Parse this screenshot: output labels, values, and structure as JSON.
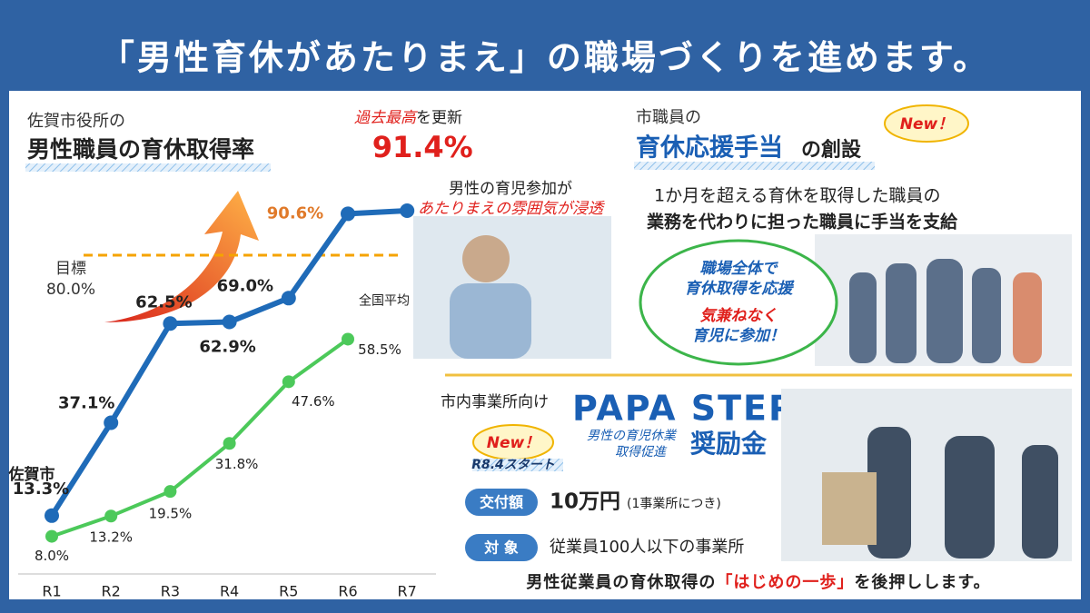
{
  "header": {
    "title": "「男性育休があたりまえ」の職場づくりを進めます。"
  },
  "chart_data": {
    "type": "line",
    "subtitle": "佐賀市役所の",
    "title": "男性職員の育休取得率",
    "annotation": {
      "emphasis": "過去最高",
      "rest": "を更新"
    },
    "categories": [
      "R1",
      "R2",
      "R3",
      "R4",
      "R5",
      "R6",
      "R7"
    ],
    "series": [
      {
        "name": "佐賀市",
        "color": "#1f6bb8",
        "values": [
          13.3,
          37.1,
          62.5,
          62.9,
          69.0,
          90.6,
          91.4
        ],
        "value_labels": [
          "13.3%",
          "37.1%",
          "62.5%",
          "62.9%",
          "69.0%",
          "90.6%",
          "91.4%"
        ]
      },
      {
        "name": "全国平均",
        "color": "#4cc95a",
        "values": [
          8.0,
          13.2,
          19.5,
          31.8,
          47.6,
          58.5,
          null
        ],
        "value_labels": [
          "8.0%",
          "13.2%",
          "19.5%",
          "31.8%",
          "47.6%",
          "58.5%",
          null
        ]
      }
    ],
    "target": {
      "label": "目標",
      "value": 80,
      "value_label": "80.0%",
      "color": "#f5a300"
    },
    "ylim": [
      0,
      100
    ]
  },
  "photo_caption": {
    "line1": "男性の育児参加が",
    "line2": "あたりまえの雰囲気が浸透"
  },
  "allowance": {
    "intro": "市職員の",
    "name": "育休応援手当",
    "suffix": "の創設",
    "badge": "New！",
    "desc1": "1か月を超える育休を取得した職員の",
    "desc2": "業務を代わりに担った職員に手当を支給",
    "bubble": [
      "職場全体で",
      "育休取得を応援",
      "気兼ねなく",
      "育児に参加！"
    ]
  },
  "papa_step": {
    "target_audience": "市内事業所向け",
    "name": "PAPA STEP",
    "sub1": "男性の育児休業",
    "sub2": "取得促進",
    "grant": "奨励金",
    "badge": "New！",
    "start": "R8.4スタート",
    "amount_label": "交付額",
    "amount": "10万円",
    "amount_note": "(1事業所につき)",
    "eligibility_label": "対 象",
    "eligibility": "従業員100人以下の事業所"
  },
  "footer": {
    "part1": "男性従業員の育休取得の",
    "part2": "「はじめの一歩」",
    "part3": "を後押しします。"
  }
}
